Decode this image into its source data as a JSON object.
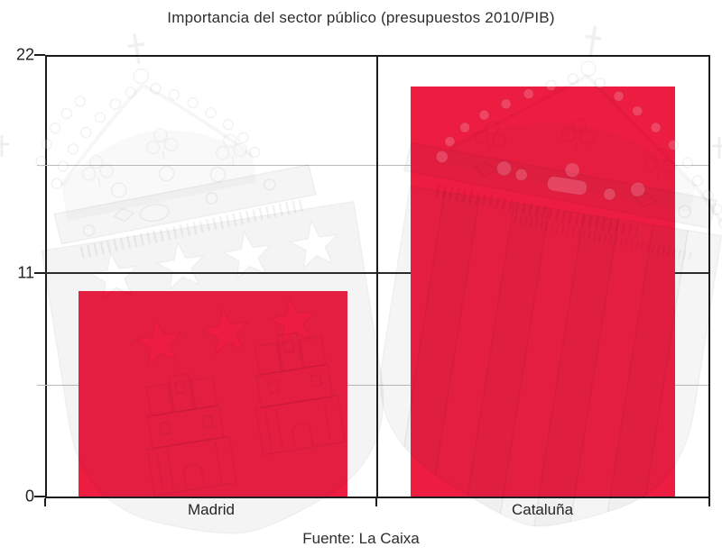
{
  "chart_data": {
    "type": "bar",
    "title": "Importancia del sector público (presupuestos 2010/PIB)",
    "categories": [
      "Madrid",
      "Cataluña"
    ],
    "values": [
      10.3,
      20.5
    ],
    "yticks": [
      "22",
      "11",
      "0"
    ],
    "yticks_minor": [
      16.5,
      5.5
    ],
    "ylim": [
      0,
      22
    ],
    "xlabel": "",
    "ylabel": "",
    "caption": "Fuente: La Caixa",
    "bar_color": "#ED1C41",
    "grid": "horizontal major and minor lines, framed plot with center divider",
    "legend": "none",
    "watermarks": [
      "coat-of-arms-of-madrid-watermark (crown, shield with stars and castles)",
      "coat-of-arms-of-catalonia-watermark (crown, shield with vertical stripes)"
    ]
  }
}
